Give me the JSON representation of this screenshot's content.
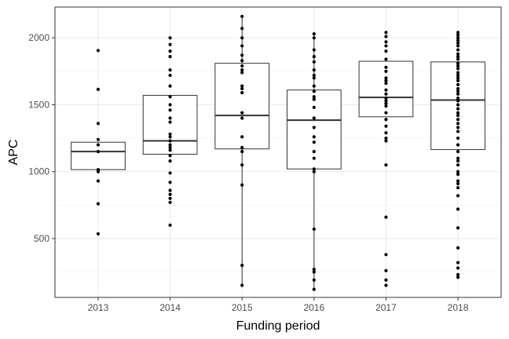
{
  "chart_data": {
    "type": "boxplot",
    "xlabel": "Funding period",
    "ylabel": "APC",
    "categories": [
      "2013",
      "2014",
      "2015",
      "2016",
      "2017",
      "2018"
    ],
    "ylim": [
      60,
      2230
    ],
    "yticks": [
      500,
      1000,
      1500,
      2000
    ],
    "grid": true,
    "boxes": [
      {
        "category": "2013",
        "q1": 1015,
        "median": 1150,
        "q3": 1220,
        "whisker_low": 1015,
        "whisker_high": 1220
      },
      {
        "category": "2014",
        "q1": 1130,
        "median": 1230,
        "q3": 1570,
        "whisker_low": 1130,
        "whisker_high": 1570
      },
      {
        "category": "2015",
        "q1": 1170,
        "median": 1420,
        "q3": 1810,
        "whisker_low": 150,
        "whisker_high": 2160
      },
      {
        "category": "2016",
        "q1": 1020,
        "median": 1385,
        "q3": 1610,
        "whisker_low": 120,
        "whisker_high": 2030
      },
      {
        "category": "2017",
        "q1": 1410,
        "median": 1555,
        "q3": 1825,
        "whisker_low": 1410,
        "whisker_high": 1825
      },
      {
        "category": "2018",
        "q1": 1165,
        "median": 1535,
        "q3": 1820,
        "whisker_low": 1165,
        "whisker_high": 1820
      }
    ],
    "points": [
      {
        "category": "2013",
        "values": [
          1905,
          1615,
          1360,
          1240,
          1200,
          1150,
          1015,
          1000,
          930,
          760,
          535
        ]
      },
      {
        "category": "2014",
        "values": [
          2000,
          1950,
          1900,
          1860,
          1760,
          1720,
          1640,
          1560,
          1500,
          1460,
          1400,
          1370,
          1280,
          1260,
          1230,
          1200,
          1180,
          1160,
          1120,
          1080,
          990,
          920,
          860,
          830,
          800,
          770,
          600
        ]
      },
      {
        "category": "2015",
        "values": [
          2160,
          2070,
          2000,
          1940,
          1870,
          1830,
          1790,
          1760,
          1740,
          1640,
          1620,
          1590,
          1440,
          1400,
          1260,
          1180,
          1150,
          1050,
          900,
          300,
          150
        ]
      },
      {
        "category": "2016",
        "values": [
          2030,
          2000,
          1910,
          1860,
          1820,
          1760,
          1720,
          1700,
          1640,
          1600,
          1560,
          1540,
          1480,
          1400,
          1330,
          1260,
          1220,
          1150,
          1100,
          1020,
          1000,
          570,
          270,
          250,
          190,
          120
        ]
      },
      {
        "category": "2017",
        "values": [
          2040,
          2010,
          1970,
          1940,
          1900,
          1840,
          1780,
          1750,
          1700,
          1680,
          1660,
          1610,
          1580,
          1550,
          1530,
          1510,
          1490,
          1440,
          1390,
          1340,
          1290,
          1250,
          1230,
          1050,
          660,
          380,
          260,
          190,
          150
        ]
      },
      {
        "category": "2018",
        "values": [
          2040,
          2020,
          2000,
          1980,
          1960,
          1940,
          1910,
          1880,
          1860,
          1840,
          1810,
          1790,
          1770,
          1740,
          1720,
          1700,
          1680,
          1650,
          1620,
          1600,
          1580,
          1550,
          1530,
          1500,
          1470,
          1440,
          1420,
          1390,
          1360,
          1330,
          1300,
          1250,
          1200,
          1150,
          1100,
          1080,
          1050,
          1000,
          980,
          930,
          910,
          880,
          820,
          720,
          580,
          430,
          320,
          280,
          230,
          210
        ]
      }
    ]
  }
}
